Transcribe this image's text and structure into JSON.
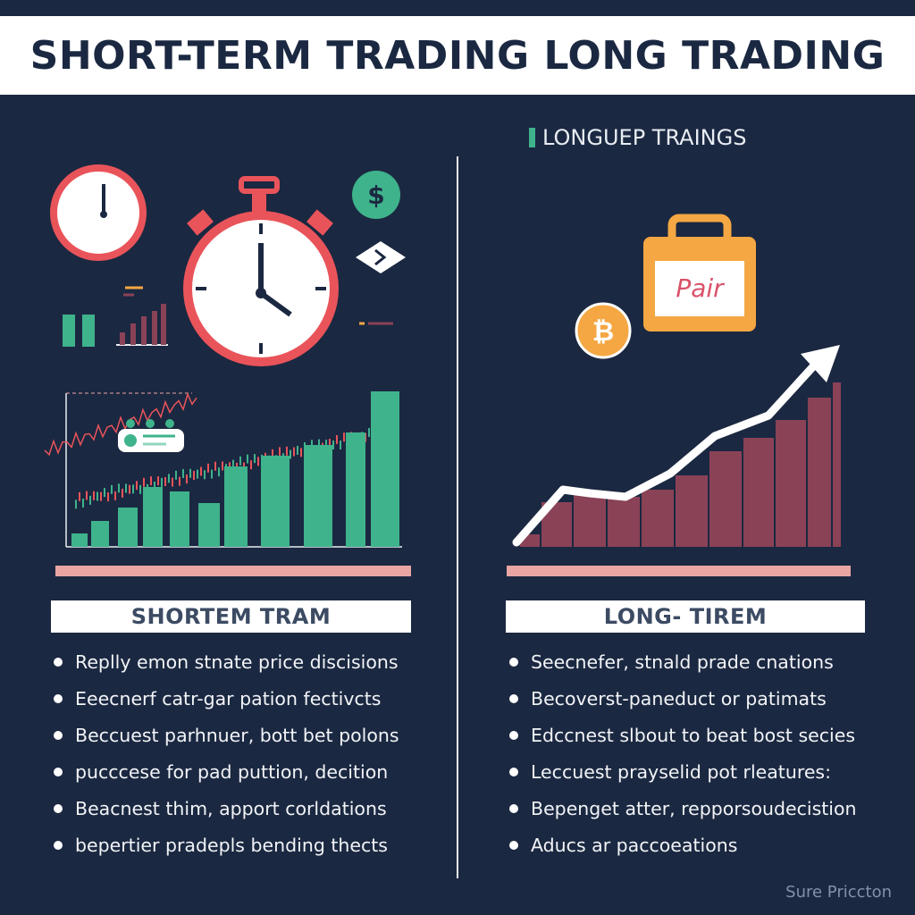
{
  "title": "SHORT-TERM TRADING LONG TRADING",
  "right_subtitle": "LONGUEP TRAINGS",
  "left": {
    "label": "SHORTEM TRAM",
    "bullets": [
      "Replly emon stnate price discisions",
      "Eeecnerf catr-gar pation fectivcts",
      "Beccuest parhnuer, bott bet polons",
      "pucccese for pad puttion, decition",
      "Beacnest thim, apport corldations",
      "bepertier pradepls bending thects"
    ]
  },
  "right": {
    "label": "LONG- TIREM",
    "bag_label": "Pair",
    "bullets": [
      "Seecnefer, stnald prade cnations",
      "Becoverst-paneduct or patimats",
      "Edccnest slbout to beat bost secies",
      "Leccuest prayselid pot rleatures:",
      "Bepenget atter, repporsoudecistion",
      "Aducs ar paccoeations"
    ]
  },
  "footer": "Sure Priccton",
  "icons": {
    "dollar_coin": "$",
    "bitcoin_coin": "₿"
  },
  "colors": {
    "background": "#1b2841",
    "green": "#3fb38c",
    "red": "#e9545a",
    "maroon": "#8a4257",
    "orange": "#f4a742",
    "pink": "#e8a6a3"
  }
}
